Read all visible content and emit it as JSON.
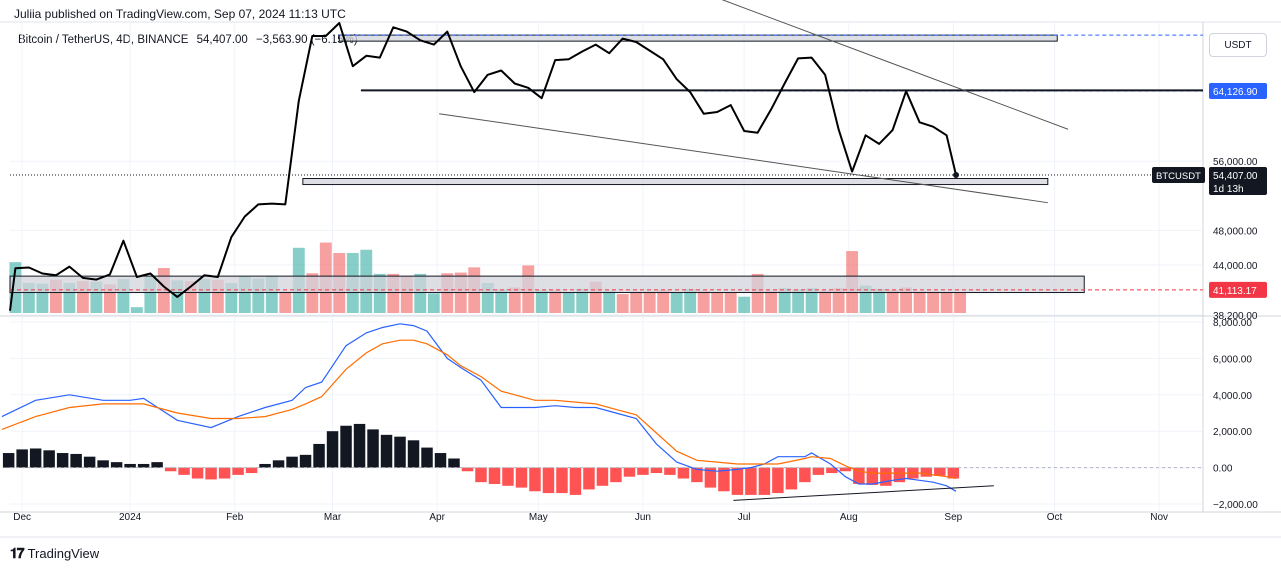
{
  "header": {
    "published": "Juliia published on TradingView.com, Sep 07, 2024 11:13 UTC"
  },
  "symbol": {
    "name": "Bitcoin / TetherUS, 4D, BINANCE",
    "last": "54,407.00",
    "change": "−3,563.90 (−6.15%)"
  },
  "currency_button": "USDT",
  "footer": {
    "brand": "TradingView",
    "logo": "tv-logo-icon"
  },
  "colors": {
    "line": "#000000",
    "up": "#26a69a",
    "down": "#ef5350",
    "macd": "#2962ff",
    "signal": "#ff6d00",
    "hist_pos": "#131722",
    "hist_neg": "#ff5252",
    "zone_fill": "#d1d4dc",
    "dashed_red": "#f23645",
    "dashed_blue": "#2962ff"
  },
  "chart_data": [
    {
      "type": "line",
      "title": "Bitcoin / TetherUS, 4D, BINANCE",
      "ylim": [
        38200,
        72000
      ],
      "y_ticks": [
        {
          "value": 56000,
          "label": "56,000.00"
        },
        {
          "value": 48000,
          "label": "48,000.00"
        },
        {
          "value": 44000,
          "label": "44,000.00"
        },
        {
          "value": 38200,
          "label": "38,200.00"
        }
      ],
      "x_ticks": [
        {
          "x": 1.5,
          "label": "Dec"
        },
        {
          "x": 9.5,
          "label": "2024"
        },
        {
          "x": 17.25,
          "label": "Feb"
        },
        {
          "x": 24.5,
          "label": "Mar"
        },
        {
          "x": 32.25,
          "label": "Apr"
        },
        {
          "x": 39.75,
          "label": "May"
        },
        {
          "x": 47.5,
          "label": "Jun"
        },
        {
          "x": 55,
          "label": "Jul"
        },
        {
          "x": 62.75,
          "label": "Aug"
        },
        {
          "x": 70.5,
          "label": "Sep"
        },
        {
          "x": 78,
          "label": "Oct"
        },
        {
          "x": 85.75,
          "label": "Nov"
        }
      ],
      "xlim": [
        0.6,
        89
      ],
      "series": [
        {
          "name": "BTCUSDT close",
          "x": [
            0.6,
            1,
            2,
            3,
            4,
            5,
            6,
            7,
            8,
            9,
            10,
            11,
            12,
            13,
            14,
            15,
            16,
            17,
            18,
            19,
            20,
            21,
            22,
            23,
            24,
            25,
            26,
            27,
            28,
            29,
            30,
            31,
            32,
            33,
            34,
            35,
            36,
            37,
            38,
            39,
            40,
            41,
            42,
            43,
            44,
            45,
            46,
            47,
            48,
            49,
            50,
            51,
            52,
            53,
            54,
            55,
            56,
            57,
            58,
            59,
            60,
            61,
            62,
            63,
            64,
            65,
            66,
            67,
            68,
            69,
            70,
            70.7
          ],
          "values": [
            38700,
            43600,
            43700,
            43000,
            42800,
            43800,
            42500,
            42300,
            42900,
            46800,
            42600,
            43000,
            41500,
            40300,
            41500,
            42800,
            42600,
            47200,
            49600,
            51000,
            51100,
            51000,
            63000,
            70500,
            70500,
            72000,
            67000,
            68200,
            68000,
            71500,
            71000,
            70000,
            69500,
            71000,
            67000,
            64000,
            66000,
            66500,
            65000,
            64500,
            63300,
            67700,
            67800,
            68700,
            69500,
            68500,
            70200,
            69800,
            68800,
            67800,
            65500,
            64000,
            61500,
            61700,
            62500,
            59500,
            59300,
            62000,
            65000,
            67900,
            68000,
            66000,
            59700,
            54800,
            59000,
            58000,
            59600,
            64100,
            60500,
            60000,
            59000,
            54407
          ],
          "color": "#000000"
        }
      ],
      "price_labels": [
        {
          "name": "price-label-64126",
          "label": "64,126.90",
          "value": 64126.9,
          "color": "#2962ff"
        },
        {
          "name": "price-label-41113",
          "label": "41,113.17",
          "value": 41113.17,
          "color": "#f23645"
        }
      ],
      "last_price": {
        "symbol": "BTCUSDT",
        "value": 54407,
        "label": "54,407.00",
        "countdown": "1d 13h"
      },
      "annotations": {
        "zones": [
          {
            "name": "resistance-zone",
            "x1": 25,
            "x2": 78.2,
            "y1": 70600,
            "y2": 69900
          },
          {
            "name": "support-zone",
            "x1": 22.3,
            "x2": 77.5,
            "y1": 54000,
            "y2": 53300
          },
          {
            "name": "volume-range-zone",
            "x1": 0.6,
            "x2": 80.2,
            "y1": 42700,
            "y2": 40800
          }
        ],
        "lines": [
          {
            "name": "mid-horizontal-line",
            "x1": 26.6,
            "y1": 64200,
            "x2": 89,
            "y2": 64200,
            "width": 2
          },
          {
            "name": "upper-trend-line",
            "x1": 52,
            "y1": 75500,
            "x2": 79,
            "y2": 59700,
            "width": 1
          },
          {
            "name": "lower-trend-line",
            "x1": 32.4,
            "y1": 61500,
            "x2": 77.5,
            "y2": 51200,
            "width": 1
          }
        ],
        "dashed": [
          {
            "name": "dashed-line-70600",
            "value": 70600,
            "x1": 25,
            "color": "#2962ff"
          },
          {
            "name": "dashed-line-64126",
            "value": 64126.9,
            "x1": 52,
            "color": "#2962ff"
          },
          {
            "name": "dashed-line-41113",
            "value": 41113.17,
            "x1": 0.6,
            "color": "#f23645"
          }
        ]
      }
    },
    {
      "type": "bar",
      "title": "Volume",
      "x": [
        1,
        2,
        3,
        4,
        5,
        6,
        7,
        8,
        9,
        10,
        11,
        12,
        13,
        14,
        15,
        16,
        17,
        18,
        19,
        20,
        21,
        22,
        23,
        24,
        25,
        26,
        27,
        28,
        29,
        30,
        31,
        32,
        33,
        34,
        35,
        36,
        37,
        38,
        39,
        40,
        41,
        42,
        43,
        44,
        45,
        46,
        47,
        48,
        49,
        50,
        51,
        52,
        53,
        54,
        55,
        56,
        57,
        58,
        59,
        60,
        61,
        62,
        63,
        64,
        65,
        66,
        67,
        68,
        69,
        70,
        71
      ],
      "values": [
        0.78,
        0.46,
        0.45,
        0.51,
        0.46,
        0.49,
        0.48,
        0.44,
        0.52,
        0.09,
        0.55,
        0.69,
        0.5,
        0.49,
        0.52,
        0.51,
        0.46,
        0.56,
        0.53,
        0.57,
        0.33,
        1.0,
        0.61,
        1.08,
        0.92,
        0.92,
        0.97,
        0.6,
        0.6,
        0.56,
        0.6,
        0.3,
        0.61,
        0.62,
        0.7,
        0.46,
        0.36,
        0.39,
        0.73,
        0.35,
        0.35,
        0.32,
        0.37,
        0.48,
        0.34,
        0.29,
        0.33,
        0.33,
        0.35,
        0.31,
        0.37,
        0.34,
        0.31,
        0.31,
        0.25,
        0.6,
        0.34,
        0.38,
        0.36,
        0.38,
        0.34,
        0.38,
        0.95,
        0.42,
        0.37,
        0.35,
        0.39,
        0.33,
        0.33,
        0.32,
        0.31
      ],
      "colors": [
        "up",
        "up",
        "up",
        "down",
        "up",
        "down",
        "up",
        "down",
        "up",
        "up",
        "up",
        "down",
        "up",
        "down",
        "up",
        "down",
        "up",
        "up",
        "up",
        "up",
        "down",
        "up",
        "down",
        "down",
        "down",
        "up",
        "up",
        "up",
        "down",
        "down",
        "up",
        "up",
        "down",
        "down",
        "down",
        "up",
        "up",
        "down",
        "down",
        "up",
        "down",
        "up",
        "up",
        "down",
        "up",
        "down",
        "down",
        "down",
        "down",
        "up",
        "up",
        "down",
        "down",
        "down",
        "up",
        "down",
        "down",
        "up",
        "up",
        "up",
        "down",
        "down",
        "down",
        "up",
        "up",
        "down",
        "down",
        "down",
        "down",
        "down",
        "down"
      ],
      "ylim": [
        0,
        1.15
      ]
    },
    {
      "type": "line",
      "title": "MACD",
      "ylim": [
        -2000,
        8000
      ],
      "y_ticks": [
        {
          "value": 8000,
          "label": "8,000.00"
        },
        {
          "value": 6000,
          "label": "6,000.00"
        },
        {
          "value": 4000,
          "label": "4,000.00"
        },
        {
          "value": 2000,
          "label": "2,000.00"
        },
        {
          "value": 0,
          "label": "0.00"
        },
        {
          "value": -2000,
          "label": "−2,000.00"
        }
      ],
      "series": [
        {
          "name": "MACD",
          "color": "#2962ff",
          "x": [
            0,
            2.5,
            5,
            7.5,
            9.5,
            10.5,
            13,
            15.5,
            17.5,
            19.5,
            21.5,
            22.5,
            23.7,
            25.5,
            27,
            28.2,
            29.5,
            30.5,
            31.5,
            33,
            34,
            35.5,
            37,
            39.5,
            41,
            42.5,
            44,
            45.5,
            47,
            48.5,
            50,
            51.5,
            53,
            54.5,
            55.5,
            56.5,
            57.5,
            59.5,
            60,
            61.4,
            62.5,
            63.5,
            64.5,
            66,
            67,
            68,
            69,
            70,
            70.7
          ],
          "values": [
            2800,
            3700,
            4000,
            3700,
            3700,
            3800,
            2600,
            2200,
            2800,
            3300,
            3700,
            4400,
            4700,
            6700,
            7400,
            7700,
            7900,
            7800,
            7500,
            6000,
            5500,
            4800,
            3300,
            3300,
            3400,
            3300,
            3300,
            3000,
            2700,
            1300,
            300,
            -100,
            -200,
            -100,
            0,
            200,
            600,
            600,
            800,
            200,
            -500,
            -900,
            -900,
            -700,
            -600,
            -700,
            -800,
            -1000,
            -1300
          ]
        },
        {
          "name": "Signal",
          "color": "#ff6d00",
          "x": [
            0,
            2.5,
            5,
            7.5,
            9.5,
            10.5,
            13,
            15.5,
            17.5,
            19.5,
            21.5,
            22.5,
            23.7,
            25.5,
            27,
            28.2,
            29.5,
            30.5,
            31.5,
            33,
            34,
            35.5,
            37,
            39.5,
            41,
            42.5,
            44,
            45.5,
            47,
            48.5,
            50,
            51.5,
            53,
            54.5,
            55.5,
            56.5,
            57.5,
            59.5,
            60,
            61.4,
            62.5,
            63.5,
            64.5,
            66,
            67,
            68,
            69,
            70,
            70.7
          ],
          "values": [
            2100,
            2800,
            3300,
            3500,
            3500,
            3500,
            3000,
            2700,
            2700,
            2800,
            3200,
            3500,
            3900,
            5400,
            6300,
            6800,
            7000,
            7000,
            6800,
            6200,
            5600,
            5000,
            4200,
            3700,
            3700,
            3600,
            3500,
            3200,
            2900,
            1900,
            900,
            400,
            300,
            200,
            200,
            200,
            200,
            500,
            600,
            500,
            100,
            -200,
            -300,
            -300,
            -300,
            -300,
            -400,
            -500,
            -600
          ]
        }
      ],
      "histogram": {
        "x": [
          0.5,
          1.5,
          2.5,
          3.5,
          4.5,
          5.5,
          6.5,
          7.5,
          8.5,
          9.5,
          10.5,
          11.5,
          12.5,
          13.5,
          14.5,
          15.5,
          16.5,
          17.5,
          18.5,
          19.5,
          20.5,
          21.5,
          22.5,
          23.5,
          24.5,
          25.5,
          26.5,
          27.5,
          28.5,
          29.5,
          30.5,
          31.5,
          32.5,
          33.5,
          34.5,
          35.5,
          36.5,
          37.5,
          38.5,
          39.5,
          40.5,
          41.5,
          42.5,
          43.5,
          44.5,
          45.5,
          46.5,
          47.5,
          48.5,
          49.5,
          50.5,
          51.5,
          52.5,
          53.5,
          54.5,
          55.5,
          56.5,
          57.5,
          58.5,
          59.5,
          60.5,
          61.5,
          62.5,
          63.5,
          64.5,
          65.5,
          66.5,
          67.5,
          68.5,
          69.5,
          70.5
        ],
        "values": [
          800,
          1000,
          1050,
          950,
          800,
          750,
          600,
          400,
          300,
          200,
          200,
          300,
          -200,
          -400,
          -600,
          -650,
          -600,
          -400,
          -300,
          200,
          400,
          600,
          700,
          1300,
          2000,
          2300,
          2400,
          2100,
          1800,
          1700,
          1500,
          1100,
          800,
          500,
          -200,
          -800,
          -900,
          -1000,
          -1100,
          -1300,
          -1400,
          -1400,
          -1500,
          -1200,
          -1000,
          -800,
          -500,
          -400,
          -300,
          -400,
          -600,
          -800,
          -1100,
          -1300,
          -1500,
          -1500,
          -1500,
          -1400,
          -1200,
          -800,
          -400,
          -300,
          -200,
          -900,
          -950,
          -1000,
          -800,
          -600,
          -500,
          -450,
          -600
        ],
        "colors": [
          "pos",
          "pos",
          "pos",
          "pos",
          "pos",
          "pos",
          "pos",
          "pos",
          "pos",
          "pos",
          "pos",
          "pos",
          "neg",
          "neg",
          "neg",
          "neg",
          "neg",
          "neg",
          "neg",
          "pos",
          "pos",
          "pos",
          "pos",
          "pos",
          "pos",
          "pos",
          "pos",
          "pos",
          "pos",
          "pos",
          "pos",
          "pos",
          "pos",
          "pos",
          "neg",
          "neg",
          "neg",
          "neg",
          "neg",
          "neg",
          "neg",
          "neg",
          "neg",
          "neg",
          "neg",
          "neg",
          "neg",
          "neg",
          "neg",
          "neg",
          "neg",
          "neg",
          "neg",
          "neg",
          "neg",
          "neg",
          "neg",
          "neg",
          "neg",
          "neg",
          "neg",
          "neg",
          "neg",
          "neg",
          "neg",
          "neg",
          "neg",
          "neg",
          "neg",
          "neg",
          "neg"
        ]
      },
      "annotations": {
        "trend_line": {
          "x1": 54.2,
          "y1": -1800,
          "x2": 73.5,
          "y2": -1000
        }
      }
    }
  ]
}
